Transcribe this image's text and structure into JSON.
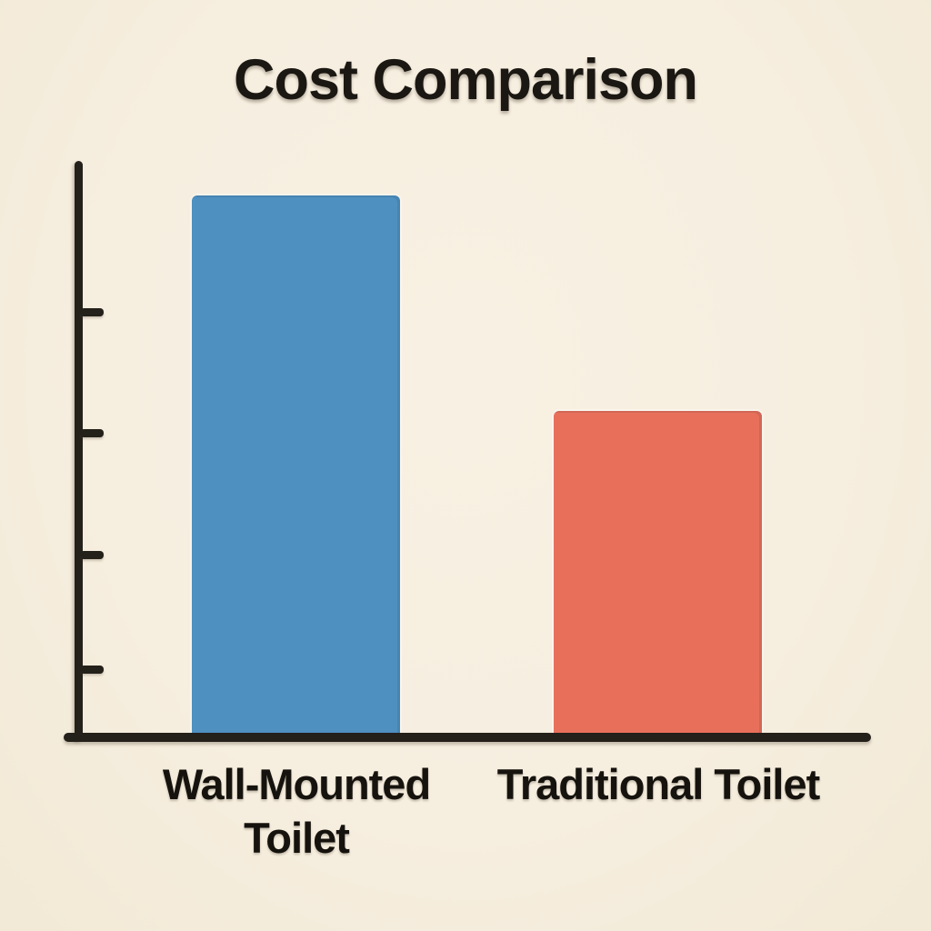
{
  "page": {
    "background_color": "#f6eedf"
  },
  "chart_data": {
    "type": "bar",
    "title": "Cost Comparison",
    "categories": [
      "Wall-Mounted Toilet",
      "Traditional Toilet"
    ],
    "values": [
      100,
      60
    ],
    "axis_max": 106,
    "xlabel": "",
    "ylabel": "",
    "y_tick_count": 4,
    "y_tick_labels_shown": false,
    "value_labels_shown": false,
    "legend_position": "none",
    "grid": "off",
    "bar_colors": [
      "#4e90c0",
      "#e8705b"
    ],
    "axis_color": "#24201a",
    "title_color": "#1b1813",
    "label_color": "#16130e"
  }
}
